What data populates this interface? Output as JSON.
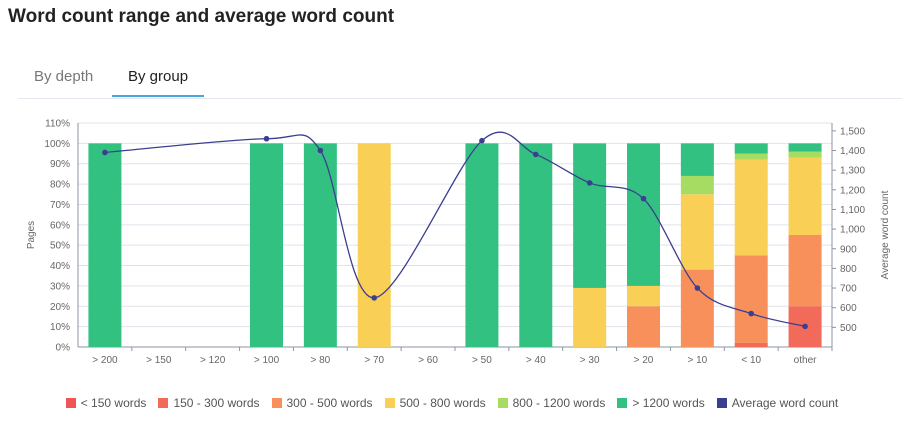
{
  "title": "Word count range and average word count",
  "tabs": [
    {
      "label": "By depth",
      "active": false
    },
    {
      "label": "By group",
      "active": true
    }
  ],
  "colors": {
    "lt150": "#f05454",
    "w150_300": "#f26a5a",
    "w300_500": "#f7905a",
    "w500_800": "#f9cf55",
    "w800_1200": "#a6dc62",
    "gt1200": "#33c182",
    "avg": "#3b3f8f",
    "grid": "#dfe3ea",
    "axis": "#8b93a1"
  },
  "chart_data": {
    "type": "bar",
    "stacked": true,
    "categories": [
      "> 200",
      "> 150",
      "> 120",
      "> 100",
      "> 80",
      "> 70",
      "> 60",
      "> 50",
      "> 40",
      "> 30",
      "> 20",
      "> 10",
      "< 10",
      "other"
    ],
    "series": [
      {
        "name": "< 150 words",
        "color_key": "lt150",
        "values": [
          0,
          0,
          0,
          0,
          0,
          0,
          0,
          0,
          0,
          0,
          0,
          0,
          0,
          0
        ]
      },
      {
        "name": "150 - 300 words",
        "color_key": "w150_300",
        "values": [
          0,
          0,
          0,
          0,
          0,
          0,
          0,
          0,
          0,
          0,
          0,
          0,
          2,
          20
        ]
      },
      {
        "name": "300 - 500 words",
        "color_key": "w300_500",
        "values": [
          0,
          0,
          0,
          0,
          0,
          0,
          0,
          0,
          0,
          0,
          20,
          38,
          43,
          35
        ]
      },
      {
        "name": "500 - 800 words",
        "color_key": "w500_800",
        "values": [
          0,
          0,
          0,
          0,
          0,
          100,
          0,
          0,
          0,
          29,
          10,
          37,
          47,
          38
        ]
      },
      {
        "name": "800 - 1200 words",
        "color_key": "w800_1200",
        "values": [
          0,
          0,
          0,
          0,
          0,
          0,
          0,
          0,
          0,
          0,
          0,
          9,
          3,
          3
        ]
      },
      {
        "name": "> 1200 words",
        "color_key": "gt1200",
        "values": [
          100,
          0,
          0,
          100,
          100,
          0,
          0,
          100,
          100,
          71,
          70,
          16,
          5,
          4
        ]
      }
    ],
    "line_series": {
      "name": "Average word count",
      "color_key": "avg",
      "values": [
        1390,
        null,
        null,
        1460,
        1400,
        650,
        null,
        1450,
        1380,
        1235,
        1155,
        700,
        570,
        505
      ]
    },
    "y_left": {
      "label": "Pages",
      "min": 0,
      "max": 110,
      "ticks": [
        "0%",
        "10%",
        "20%",
        "30%",
        "40%",
        "50%",
        "60%",
        "70%",
        "80%",
        "90%",
        "100%",
        "110%"
      ]
    },
    "y_right": {
      "label": "Average word count",
      "min": 400,
      "max": 1540,
      "ticks": [
        "500",
        "600",
        "700",
        "800",
        "900",
        "1,000",
        "1,100",
        "1,200",
        "1,300",
        "1,400",
        "1,500"
      ]
    },
    "grid": true,
    "legend_position": "bottom"
  }
}
